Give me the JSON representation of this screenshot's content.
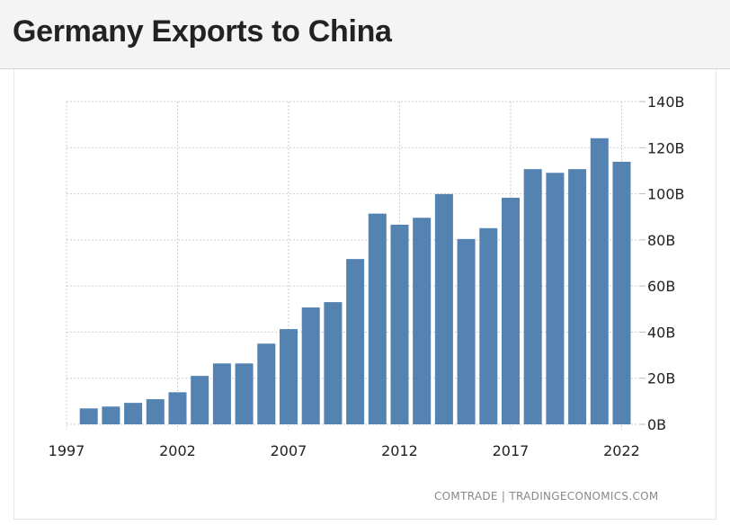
{
  "header": {
    "title": "Germany Exports to China"
  },
  "source": "COMTRADE | TRADINGECONOMICS.COM",
  "chart_data": {
    "type": "bar",
    "title": "Germany Exports to China",
    "categories": [
      1998,
      1999,
      2000,
      2001,
      2002,
      2003,
      2004,
      2005,
      2006,
      2007,
      2008,
      2009,
      2010,
      2011,
      2012,
      2013,
      2014,
      2015,
      2016,
      2017,
      2018,
      2019,
      2020,
      2021,
      2022
    ],
    "values": [
      6.9,
      7.7,
      9.3,
      10.9,
      13.9,
      21.0,
      26.4,
      26.4,
      35.0,
      41.3,
      50.7,
      53.0,
      71.7,
      91.4,
      86.6,
      89.6,
      99.9,
      80.4,
      85.1,
      98.3,
      110.7,
      109.1,
      110.7,
      124.1,
      113.9
    ],
    "unit": "B",
    "xlabel": "",
    "ylabel": "",
    "ylim": [
      0,
      140
    ],
    "y_ticks": [
      "0B",
      "20B",
      "40B",
      "60B",
      "80B",
      "100B",
      "120B",
      "140B"
    ],
    "x_ticks": [
      "1997",
      "2002",
      "2007",
      "2012",
      "2017",
      "2022"
    ],
    "y_axis_position": "right",
    "grid": true,
    "bar_color": "#5482b1"
  }
}
